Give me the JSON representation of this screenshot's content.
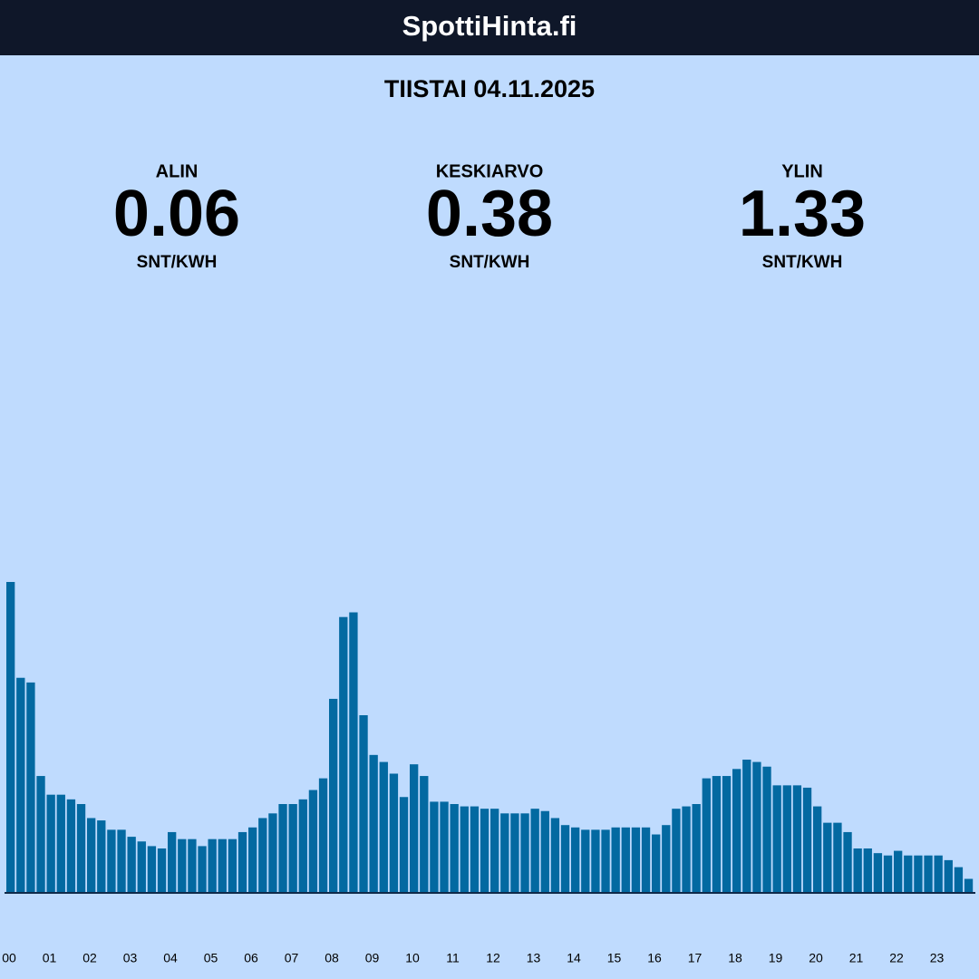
{
  "header": {
    "title": "SpottiHinta.fi"
  },
  "date": "TIISTAI 04.11.2025",
  "stats": [
    {
      "label": "ALIN",
      "value": 0.06,
      "unit": "SNT/KWH"
    },
    {
      "label": "KESKIARVO",
      "value": 0.38,
      "unit": "SNT/KWH"
    },
    {
      "label": "YLIN",
      "value": 1.33,
      "unit": "SNT/KWH"
    }
  ],
  "chart_data": {
    "type": "bar",
    "color": "#0369a1",
    "categories": [
      "00",
      null,
      null,
      null,
      "01",
      null,
      null,
      null,
      "02",
      null,
      null,
      null,
      "03",
      null,
      null,
      null,
      "04",
      null,
      null,
      null,
      "05",
      null,
      null,
      null,
      "06",
      null,
      null,
      null,
      "07",
      null,
      null,
      null,
      "08",
      null,
      null,
      null,
      "09",
      null,
      null,
      null,
      "10",
      null,
      null,
      null,
      "11",
      null,
      null,
      null,
      "12",
      null,
      null,
      null,
      "13",
      null,
      null,
      null,
      "14",
      null,
      null,
      null,
      "15",
      null,
      null,
      null,
      "16",
      null,
      null,
      null,
      "17",
      null,
      null,
      null,
      "18",
      null,
      null,
      null,
      "19",
      null,
      null,
      null,
      "20",
      null,
      null,
      null,
      "21",
      null,
      null,
      null,
      "22",
      null,
      null,
      null,
      "23",
      null,
      null,
      null
    ],
    "values": [
      1.33,
      0.92,
      0.9,
      0.5,
      0.42,
      0.42,
      0.4,
      0.38,
      0.32,
      0.31,
      0.27,
      0.27,
      0.24,
      0.22,
      0.2,
      0.19,
      0.26,
      0.23,
      0.23,
      0.2,
      0.23,
      0.23,
      0.23,
      0.26,
      0.28,
      0.32,
      0.34,
      0.38,
      0.38,
      0.4,
      0.44,
      0.49,
      0.83,
      1.18,
      1.2,
      0.76,
      0.59,
      0.56,
      0.51,
      0.41,
      0.55,
      0.5,
      0.39,
      0.39,
      0.38,
      0.37,
      0.37,
      0.36,
      0.36,
      0.34,
      0.34,
      0.34,
      0.36,
      0.35,
      0.32,
      0.29,
      0.28,
      0.27,
      0.27,
      0.27,
      0.28,
      0.28,
      0.28,
      0.28,
      0.25,
      0.29,
      0.36,
      0.37,
      0.38,
      0.49,
      0.5,
      0.5,
      0.53,
      0.57,
      0.56,
      0.54,
      0.46,
      0.46,
      0.46,
      0.45,
      0.37,
      0.3,
      0.3,
      0.26,
      0.19,
      0.19,
      0.17,
      0.16,
      0.18,
      0.16,
      0.16,
      0.16,
      0.16,
      0.14,
      0.11,
      0.06
    ],
    "ylim": [
      0,
      1.33
    ]
  }
}
